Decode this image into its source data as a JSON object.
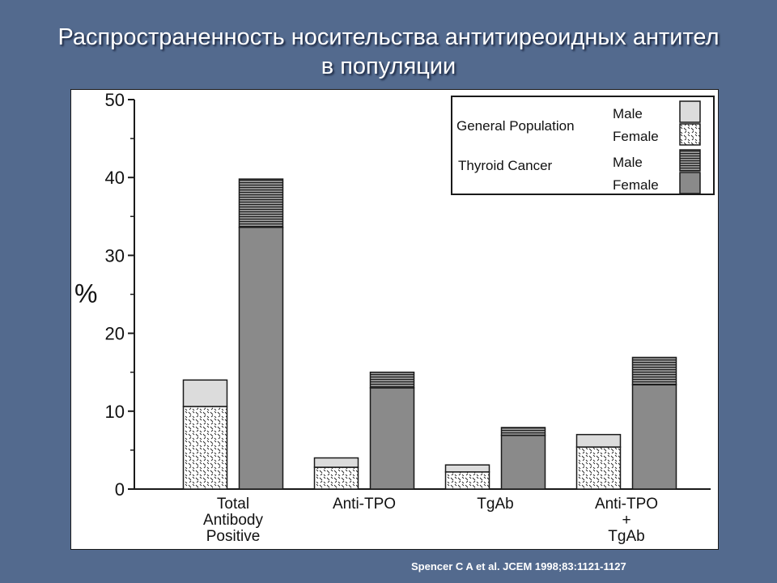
{
  "slide": {
    "title_line1": "Распространенность носительства антитиреоидных антител",
    "title_line2": "в популяции",
    "citation": "Spencer C A et al. JCEM 1998;83:1121-1127"
  },
  "chart_data": {
    "type": "bar",
    "stacked": true,
    "ylabel": "%",
    "ylim": [
      0,
      50
    ],
    "yticks": [
      0,
      10,
      20,
      30,
      40,
      50
    ],
    "grid": false,
    "legend_position": "top-right",
    "categories": [
      {
        "lines": [
          "Total",
          "Antibody",
          "Positive"
        ]
      },
      {
        "lines": [
          "Anti-TPO"
        ]
      },
      {
        "lines": [
          "TgAb"
        ]
      },
      {
        "lines": [
          "Anti-TPO",
          "+",
          "TgAb"
        ]
      }
    ],
    "groups": [
      {
        "name": "General Population",
        "segments": [
          {
            "name": "Female",
            "pattern": "crosshatch",
            "values": [
              10.6,
              2.8,
              2.2,
              5.4
            ]
          },
          {
            "name": "Male",
            "pattern": "light",
            "values": [
              3.4,
              1.2,
              0.9,
              1.6
            ]
          }
        ]
      },
      {
        "name": "Thyroid  Cancer",
        "segments": [
          {
            "name": "Female",
            "pattern": "dark",
            "values": [
              33.6,
              13.0,
              6.9,
              13.4
            ]
          },
          {
            "name": "Male",
            "pattern": "hlines",
            "values": [
              6.2,
              2.0,
              1.0,
              3.5
            ]
          }
        ]
      }
    ],
    "legend": {
      "general_label": "General Population",
      "cancer_label": "Thyroid  Cancer",
      "male_label": "Male",
      "female_label": "Female"
    },
    "colors": {
      "light": "#dcdcdc",
      "dark": "#8a8a8a",
      "hlines_bg": "#9a9a9a",
      "hlines_line": "#1e1e1e",
      "crosshatch_bg": "#ffffff",
      "crosshatch_mark": "#222222",
      "stroke": "#1a1a1a"
    }
  }
}
